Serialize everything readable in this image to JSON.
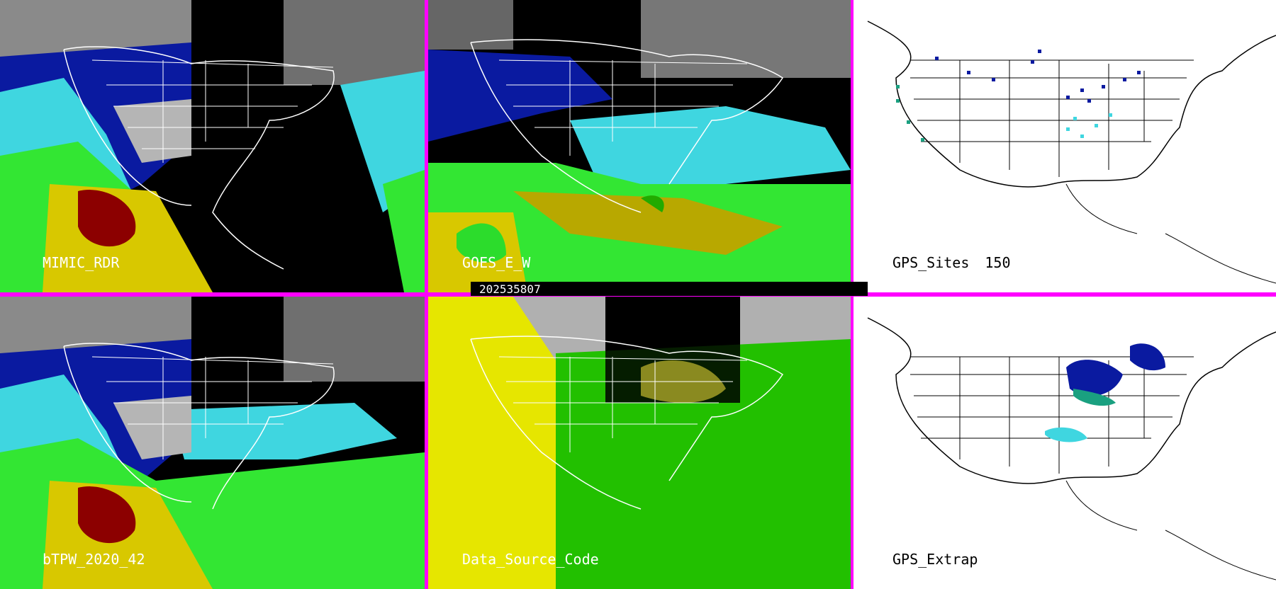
{
  "panels": [
    {
      "id": "mimic",
      "label": "MIMIC_RDR"
    },
    {
      "id": "goes",
      "label": "GOES_E_W"
    },
    {
      "id": "gps_sites",
      "label": "GPS_Sites",
      "count": "150"
    },
    {
      "id": "btpw",
      "label": "bTPW_2020_42"
    },
    {
      "id": "data_source",
      "label": "Data_Source_Code"
    },
    {
      "id": "gps_extrap",
      "label": "GPS_Extrap"
    }
  ],
  "timestamp": "202535807",
  "colors": {
    "separator": "#ff00ff",
    "tpw_dark_blue": "#0a1aa0",
    "tpw_cyan": "#3fd6e0",
    "tpw_green": "#33e633",
    "tpw_yellow": "#d8c800",
    "tpw_dark_red": "#8c0000",
    "source_yellow": "#e6e600",
    "source_green": "#22c000",
    "source_gray": "#b0b0b0"
  }
}
